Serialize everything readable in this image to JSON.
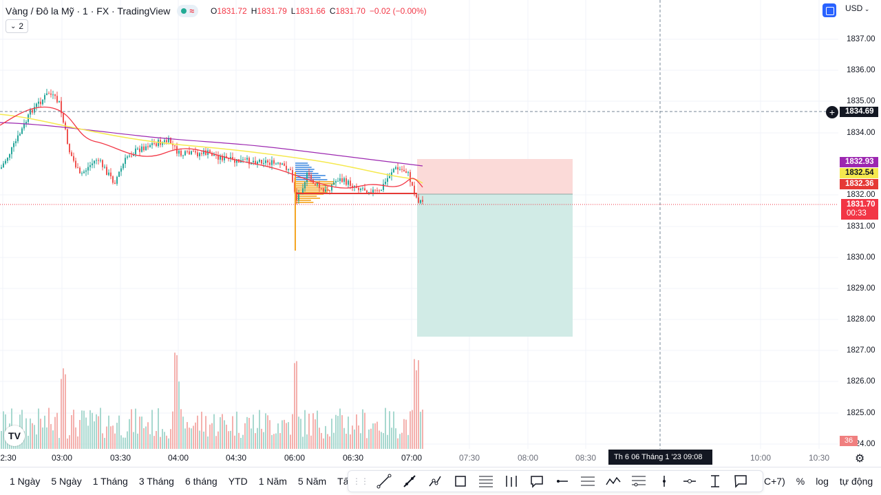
{
  "header": {
    "symbol_title": "Vàng / Đô la Mỹ · 1 · FX · TradingView",
    "indicator_count": "2",
    "ohlc": {
      "open_key": "O",
      "open": "1831.72",
      "high_key": "H",
      "high": "1831.79",
      "low_key": "L",
      "low": "1831.66",
      "close_key": "C",
      "close": "1831.70",
      "change": "−0.02 (−0.00%)"
    },
    "currency": "USD"
  },
  "price_axis": {
    "labels": [
      "1837.00",
      "1836.00",
      "1835.00",
      "1834.00",
      "1832.00",
      "1831.00",
      "1830.00",
      "1829.00",
      "1828.00",
      "1827.00",
      "1826.00",
      "1825.00",
      "1824.00"
    ],
    "crosshair_price": "1834.69",
    "tag_purple": "1832.93",
    "tag_yellow": "1832.54",
    "tag_red": "1832.36",
    "current_price": "1831.70",
    "countdown": "00:33",
    "volume_tag": "36"
  },
  "time_axis": {
    "labels": [
      "2:30",
      "03:00",
      "03:30",
      "04:00",
      "04:30",
      "06:00",
      "06:30",
      "07:00",
      "07:30",
      "08:00",
      "08:30",
      "10:00",
      "10:30"
    ],
    "crosshair_time": "Th 6 06 Tháng 1 '23   09:08"
  },
  "bottom_bar": {
    "ranges": [
      "1 Ngày",
      "5 Ngày",
      "1 Tháng",
      "3 Tháng",
      "6 tháng",
      "YTD",
      "1 Năm",
      "5 Năm",
      "Tất cả"
    ],
    "timezone_fragment": "C+7)",
    "percent": "%",
    "log": "log",
    "auto": "tự động"
  },
  "logo_text": "TV",
  "colors": {
    "up": "#26a69a",
    "down": "#ef5350",
    "ma_red": "#f23645",
    "ma_yellow": "#f5e94e",
    "ma_purple": "#9c27b0",
    "profit_zone": "#d1ebe6",
    "loss_zone": "#fbdad8"
  }
}
